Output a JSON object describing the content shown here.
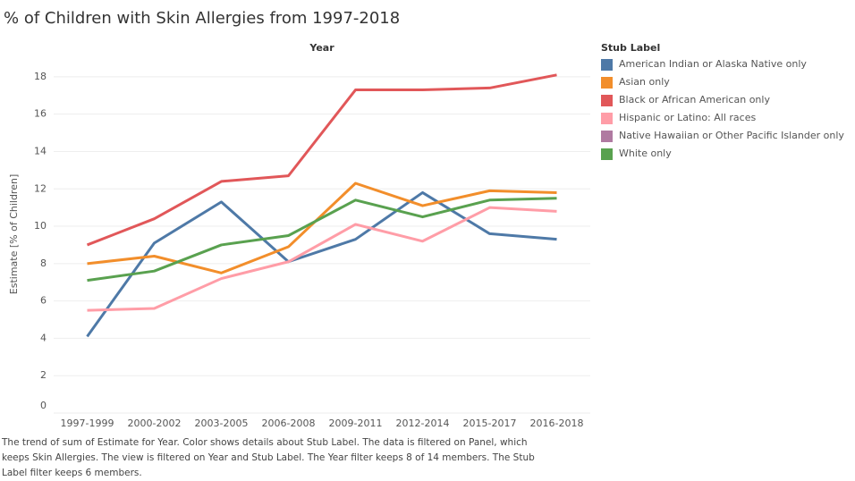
{
  "chart_data": {
    "type": "line",
    "title": "% of Children with Skin Allergies from 1997-2018",
    "x_header": "Year",
    "ylabel": "Estimate [% of Children]",
    "legend_title": "Stub Label",
    "legend": "right",
    "grid": true,
    "categories": [
      "1997-1999",
      "2000-2002",
      "2003-2005",
      "2006-2008",
      "2009-2011",
      "2012-2014",
      "2015-2017",
      "2016-2018"
    ],
    "ylim": [
      0,
      19
    ],
    "yticks": [
      0,
      2,
      4,
      6,
      8,
      10,
      12,
      14,
      16,
      18
    ],
    "series": [
      {
        "name": "American Indian or Alaska Native only",
        "color": "#4e79a7",
        "values": [
          4.1,
          9.1,
          11.3,
          8.1,
          9.3,
          11.8,
          9.6,
          9.3
        ]
      },
      {
        "name": "Asian only",
        "color": "#f28e2b",
        "values": [
          8.0,
          8.4,
          7.5,
          8.9,
          12.3,
          11.1,
          11.9,
          11.8
        ]
      },
      {
        "name": "Black or African American only",
        "color": "#e15759",
        "values": [
          9.0,
          10.4,
          12.4,
          12.7,
          17.3,
          17.3,
          17.4,
          18.1
        ]
      },
      {
        "name": "Hispanic or Latino: All races",
        "color": "#ff9da7",
        "values": [
          5.5,
          5.6,
          7.2,
          8.1,
          10.1,
          9.2,
          11.0,
          10.8
        ]
      },
      {
        "name": "Native Hawaiian or Other Pacific Islander only",
        "color": "#b07aa1",
        "values": [
          null,
          null,
          null,
          null,
          null,
          null,
          null,
          null
        ]
      },
      {
        "name": "White only",
        "color": "#59a14f",
        "values": [
          7.1,
          7.6,
          9.0,
          9.5,
          11.4,
          10.5,
          11.4,
          11.5
        ]
      }
    ],
    "caption": [
      "The trend of sum of Estimate for Year.  Color shows details about Stub Label. The data is filtered on Panel, which",
      "keeps Skin Allergies. The view is filtered on Year and Stub Label. The Year filter keeps 8 of 14 members. The Stub",
      "Label filter keeps 6 members."
    ]
  }
}
